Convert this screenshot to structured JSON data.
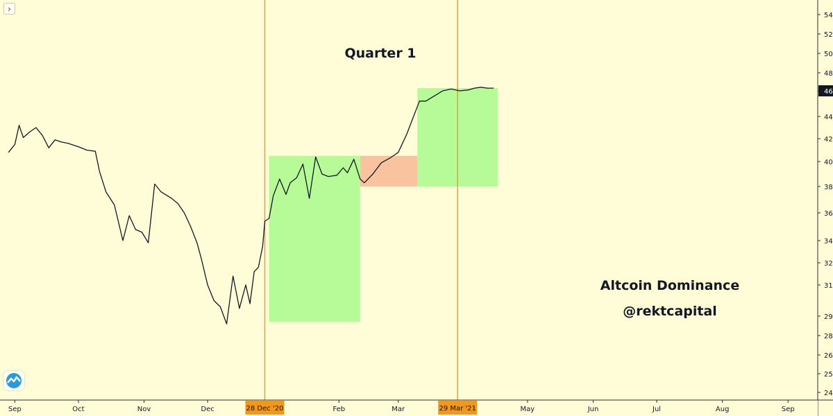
{
  "chart_data": {
    "type": "line",
    "title": "Quarter 1",
    "annotations": [
      "Altcoin Dominance",
      "@rektcapital"
    ],
    "x_labels": [
      "Sep",
      "Oct",
      "Nov",
      "Dec",
      "Feb",
      "Mar",
      "May",
      "Jun",
      "Jul",
      "Aug",
      "Sep"
    ],
    "y_ticks": [
      24,
      25,
      26,
      28,
      29,
      31,
      32,
      34,
      36,
      38,
      40,
      42,
      44,
      46,
      48,
      50,
      52,
      54
    ],
    "ylabel": "",
    "markers": [
      {
        "label": "28 Dec '20",
        "date": "2020-12-28"
      },
      {
        "label": "29 Mar '21",
        "date": "2021-03-29"
      }
    ],
    "current_value": "46",
    "boxes": [
      {
        "from": "2020-12-30",
        "to": "2021-02-11",
        "y_low": 28.7,
        "y_high": 40.5,
        "color": "#b7fb98"
      },
      {
        "from": "2021-02-11",
        "to": "2021-03-10",
        "y_low": 38.0,
        "y_high": 40.5,
        "color": "#f9c3a0"
      },
      {
        "from": "2021-03-10",
        "to": "2021-04-17",
        "y_low": 38.0,
        "y_high": 46.3,
        "color": "#b7fb98"
      }
    ],
    "series": [
      {
        "x": [
          "2020-08-29",
          "2020-09-01",
          "2020-09-03",
          "2020-09-05",
          "2020-09-08",
          "2020-09-11",
          "2020-09-14",
          "2020-09-17",
          "2020-09-20",
          "2020-09-23",
          "2020-09-26",
          "2020-10-01",
          "2020-10-05",
          "2020-10-09",
          "2020-10-11",
          "2020-10-14",
          "2020-10-18",
          "2020-10-22",
          "2020-10-25",
          "2020-10-28",
          "2020-10-31",
          "2020-11-03",
          "2020-11-06",
          "2020-11-09",
          "2020-11-11",
          "2020-11-14",
          "2020-11-17",
          "2020-11-20",
          "2020-11-23",
          "2020-11-26",
          "2020-11-28",
          "2020-12-01",
          "2020-12-04",
          "2020-12-07",
          "2020-12-10",
          "2020-12-13",
          "2020-12-16",
          "2020-12-19",
          "2020-12-21",
          "2020-12-23",
          "2020-12-25",
          "2020-12-27",
          "2020-12-28",
          "2020-12-30",
          "2021-01-01",
          "2021-01-04",
          "2021-01-07",
          "2021-01-09",
          "2021-01-12",
          "2021-01-15",
          "2021-01-18",
          "2021-01-21",
          "2021-01-24",
          "2021-01-27",
          "2021-01-31",
          "2021-02-03",
          "2021-02-05",
          "2021-02-08",
          "2021-02-11",
          "2021-02-13",
          "2021-02-17",
          "2021-02-21",
          "2021-02-25",
          "2021-03-01",
          "2021-03-05",
          "2021-03-08",
          "2021-03-11",
          "2021-03-14",
          "2021-03-18",
          "2021-03-22",
          "2021-03-26",
          "2021-03-30",
          "2021-04-03",
          "2021-04-06",
          "2021-04-09",
          "2021-04-12",
          "2021-04-15"
        ],
        "y": [
          40.8,
          41.5,
          43.2,
          42.1,
          42.6,
          43.0,
          42.3,
          41.2,
          41.9,
          41.7,
          41.6,
          41.3,
          41.0,
          40.9,
          39.2,
          37.6,
          36.6,
          34.0,
          35.8,
          34.8,
          34.6,
          33.8,
          38.2,
          37.6,
          37.4,
          37.1,
          36.7,
          36.0,
          35.0,
          33.8,
          32.4,
          31.0,
          30.0,
          29.6,
          28.6,
          31.4,
          29.5,
          31.0,
          29.8,
          31.6,
          31.8,
          33.5,
          35.4,
          35.6,
          37.3,
          38.6,
          37.4,
          38.3,
          38.7,
          39.8,
          37.1,
          40.4,
          39.0,
          38.8,
          38.9,
          39.5,
          39.1,
          40.2,
          38.6,
          38.3,
          39.0,
          39.9,
          40.3,
          40.8,
          42.4,
          43.9,
          45.2,
          45.2,
          45.6,
          46.0,
          46.2,
          46.0,
          46.1,
          46.3,
          46.4,
          46.3,
          46.3
        ]
      }
    ],
    "ylim": [
      23.7,
      55.5
    ],
    "xlim": [
      "2020-08-25",
      "2021-09-15"
    ]
  }
}
